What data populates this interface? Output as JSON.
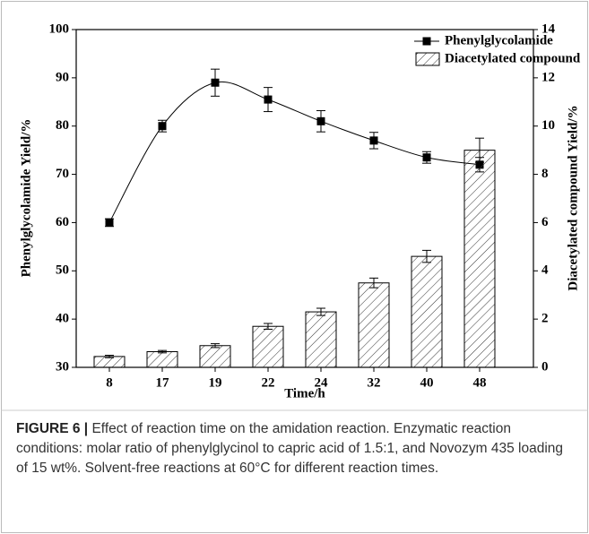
{
  "chart_data": {
    "type": "combo",
    "xlabel": "Time/h",
    "ylabel": "Phenylglycolamide Yield/%",
    "y2label": "Diacetylated compound Yield/%",
    "categories": [
      "8",
      "17",
      "19",
      "22",
      "24",
      "32",
      "40",
      "48"
    ],
    "ylim": [
      30,
      100
    ],
    "yticks": [
      30,
      40,
      50,
      60,
      70,
      80,
      90,
      100
    ],
    "y2lim": [
      0,
      14
    ],
    "y2ticks": [
      0,
      2,
      4,
      6,
      8,
      10,
      12,
      14
    ],
    "legend": "upper right",
    "series": [
      {
        "name": "Phenylglycolamide",
        "type": "line",
        "color": "#000000",
        "axis": "y",
        "values": [
          60,
          80,
          89,
          85.5,
          81,
          77,
          73.5,
          72
        ],
        "errors": [
          0.8,
          1.2,
          2.8,
          2.5,
          2.2,
          1.7,
          1.2,
          1.5
        ]
      },
      {
        "name": "Diacetylated compound",
        "type": "bar",
        "color": "#000000",
        "axis": "y2",
        "values": [
          0.45,
          0.65,
          0.9,
          1.7,
          2.3,
          3.5,
          4.6,
          9.0
        ],
        "errors": [
          0.05,
          0.05,
          0.08,
          0.12,
          0.15,
          0.2,
          0.25,
          0.5
        ]
      }
    ]
  },
  "caption": {
    "label": "FIGURE 6 |",
    "text": "Effect of reaction time on the amidation reaction. Enzymatic reaction conditions: molar ratio of phenylglycinol to capric acid of 1.5:1, and Novozym 435 loading of 15 wt%. Solvent-free reactions at 60°C for different reaction times."
  }
}
